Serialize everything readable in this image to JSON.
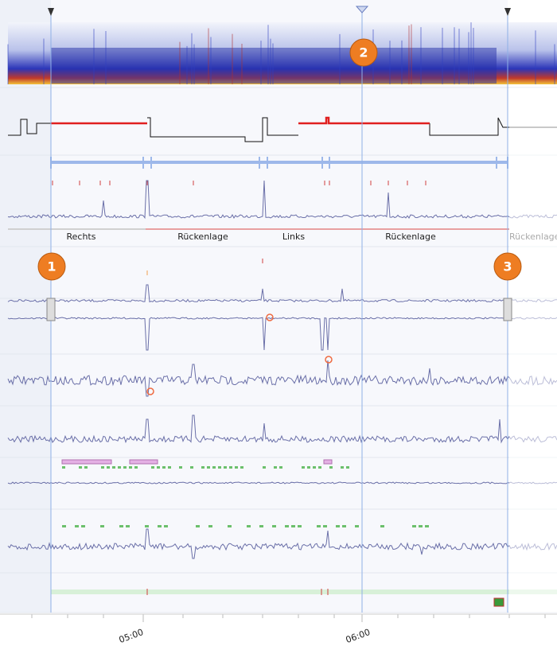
{
  "position_labels": [
    "Rechts",
    "Rückenlage",
    "Links",
    "Rückenlage",
    "Rückenlage"
  ],
  "markers": [
    "1",
    "2",
    "3"
  ],
  "time_labels": [
    "05:00",
    "06:00"
  ]
}
